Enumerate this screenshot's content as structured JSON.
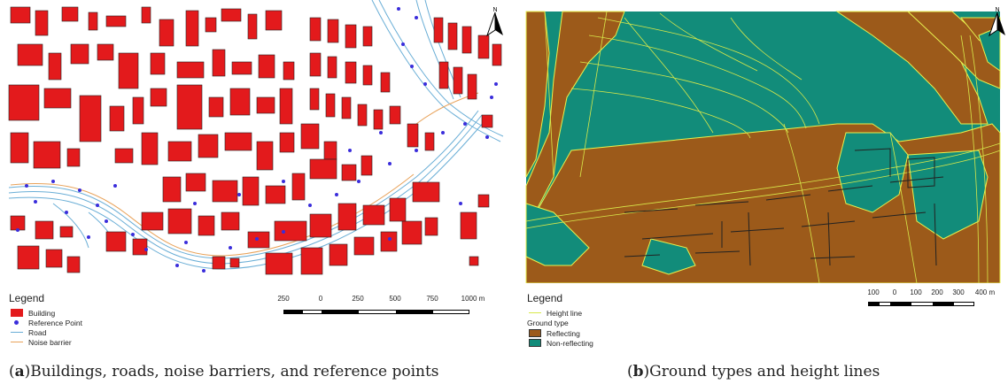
{
  "panel_a": {
    "legend": {
      "title": "Legend",
      "items": [
        {
          "label": "Building",
          "symbol": "red-fill-box",
          "color": "#e31a1c"
        },
        {
          "label": "Reference Point",
          "symbol": "blue-dot",
          "color": "#3a2ddb"
        },
        {
          "label": "Road",
          "symbol": "blue-line",
          "color": "#6aaed6"
        },
        {
          "label": "Noise barrier",
          "symbol": "orange-line",
          "color": "#e8a25a"
        }
      ]
    },
    "scalebar": {
      "labels": [
        "250",
        "0",
        "250",
        "500",
        "750",
        "1000 m"
      ]
    },
    "north_label": "N",
    "caption": {
      "letter": "a",
      "text": "Buildings, roads, noise barriers, and reference points"
    }
  },
  "panel_b": {
    "legend": {
      "title": "Legend",
      "height_line_label": "Height line",
      "ground_type_heading": "Ground type",
      "items": [
        {
          "label": "Reflecting",
          "color": "#9c5a1a"
        },
        {
          "label": "Non-reflecting",
          "color": "#128c7a"
        }
      ]
    },
    "scalebar": {
      "labels": [
        "100",
        "0",
        "100",
        "200",
        "300",
        "400 m"
      ]
    },
    "north_label": "N",
    "caption": {
      "letter": "b",
      "text": "Ground types and height lines"
    }
  },
  "colors": {
    "building": "#e31a1c",
    "reference_point": "#3a2ddb",
    "road": "#6aaed6",
    "noise_barrier": "#e8a25a",
    "reflecting": "#9c5a1a",
    "non_reflecting": "#128c7a",
    "height_line": "#d8e84a"
  }
}
